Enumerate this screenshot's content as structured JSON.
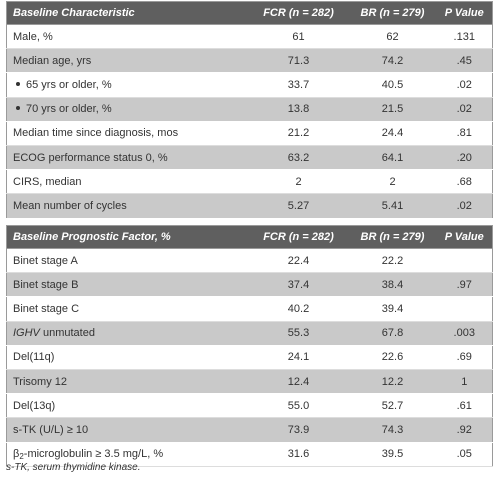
{
  "table1": {
    "headers": [
      "Baseline Characteristic",
      "FCR (n = 282)",
      "BR (n = 279)",
      "P Value"
    ],
    "rows": [
      [
        "Male, %",
        "61",
        "62",
        ".131"
      ],
      [
        "Median age, yrs",
        "71.3",
        "74.2",
        ".45"
      ],
      [
        "65 yrs or older, %",
        "33.7",
        "40.5",
        ".02"
      ],
      [
        "70 yrs or older, %",
        "13.8",
        "21.5",
        ".02"
      ],
      [
        "Median time since diagnosis, mos",
        "21.2",
        "24.4",
        ".81"
      ],
      [
        "ECOG performance status 0, %",
        "63.2",
        "64.1",
        ".20"
      ],
      [
        "CIRS, median",
        "2",
        "2",
        ".68"
      ],
      [
        "Mean number of cycles",
        "5.27",
        "5.41",
        ".02"
      ]
    ]
  },
  "table2": {
    "headers": [
      "Baseline Prognostic Factor, %",
      "FCR (n = 282)",
      "BR (n = 279)",
      "P Value"
    ],
    "rows": [
      [
        "Binet stage A",
        "22.4",
        "22.2",
        ""
      ],
      [
        "Binet stage B",
        "37.4",
        "38.4",
        ".97"
      ],
      [
        "Binet stage C",
        "40.2",
        "39.4",
        ""
      ],
      [
        "IGHV",
        "55.3",
        "67.8",
        ".003"
      ],
      [
        "Del(11q)",
        "24.1",
        "22.6",
        ".69"
      ],
      [
        "Trisomy 12",
        "12.4",
        "12.2",
        "1"
      ],
      [
        "Del(13q)",
        "55.0",
        "52.7",
        ".61"
      ],
      [
        "s-TK (U/L) ≥ 10",
        "73.9",
        "74.3",
        ".92"
      ],
      [
        "β",
        "31.6",
        "39.5",
        ".05"
      ]
    ],
    "ighv_suffix": " unmutated",
    "b2_sub": "2",
    "b2_suffix": "-microglobulin ≥ 3.5 mg/L, %"
  },
  "footnote": "s-TK, serum thymidine kinase."
}
